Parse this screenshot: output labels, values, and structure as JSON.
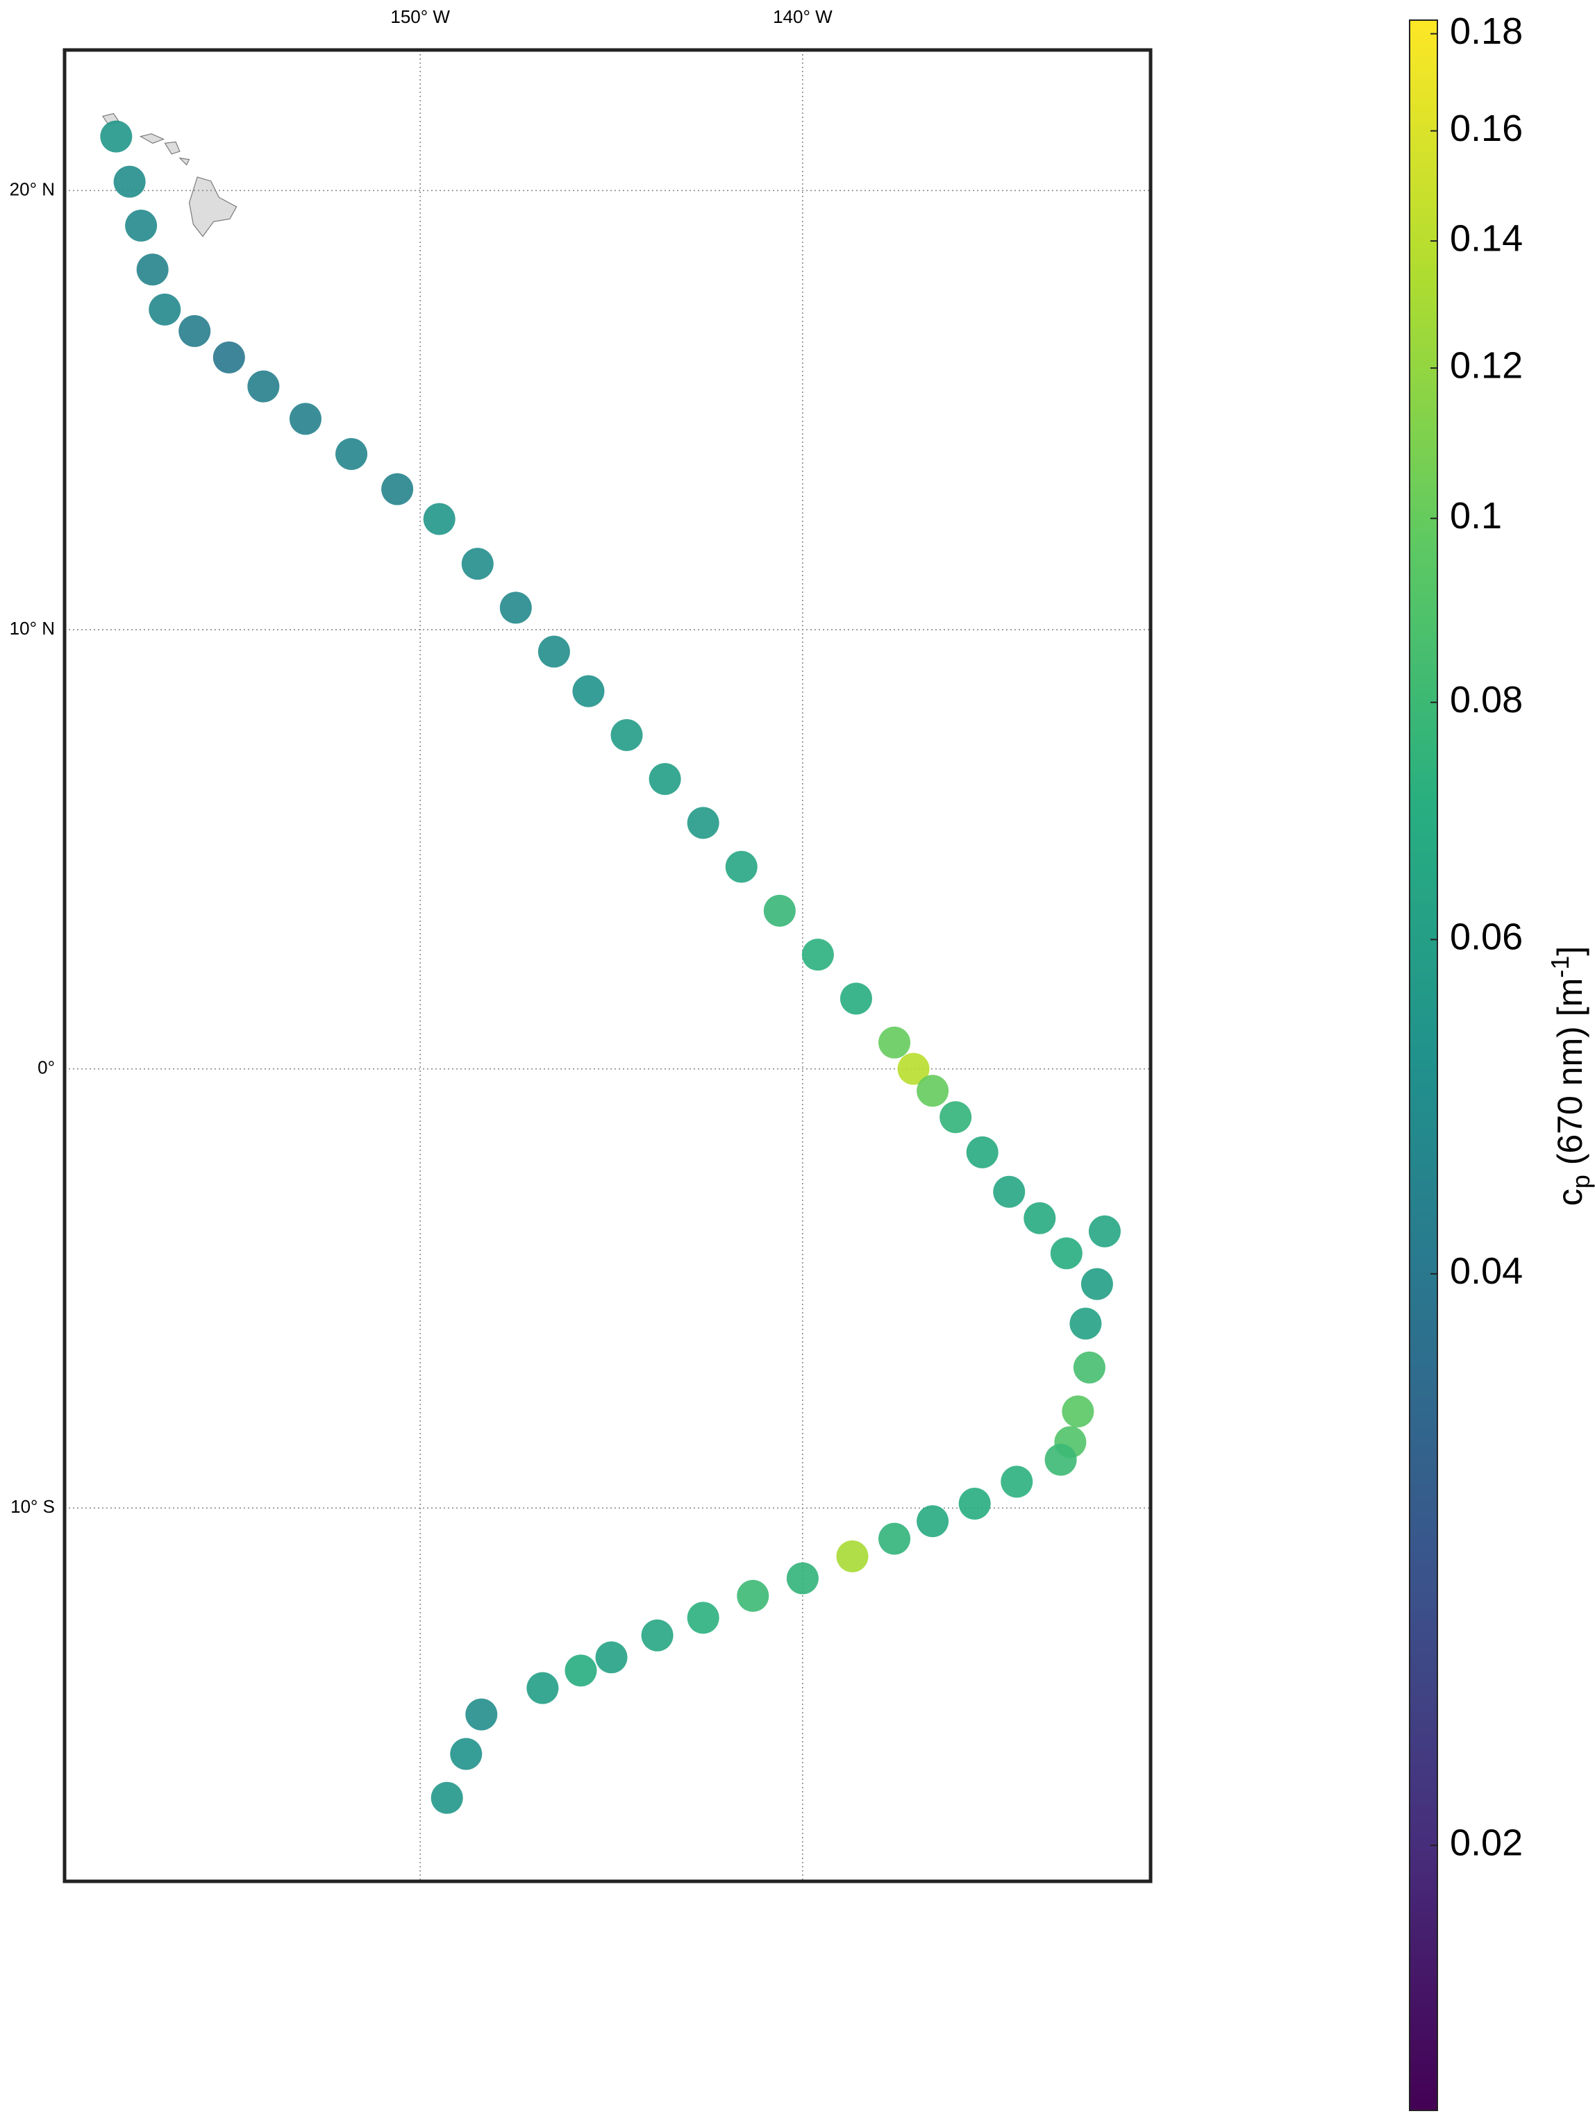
{
  "chart_data": {
    "type": "scatter",
    "x": [
      -157.95,
      -157.6,
      -157.3,
      -157.0,
      -156.68,
      -155.9,
      -155.0,
      -154.1,
      -153.0,
      -151.8,
      -150.6,
      -149.5,
      -148.5,
      -147.5,
      -146.5,
      -145.6,
      -144.6,
      -143.6,
      -142.6,
      -141.6,
      -140.6,
      -139.6,
      -138.6,
      -137.6,
      -137.1,
      -136.6,
      -136.0,
      -135.3,
      -134.6,
      -133.8,
      -133.1,
      -132.1,
      -132.3,
      -132.6,
      -132.5,
      -132.8,
      -133.0,
      -133.25,
      -134.4,
      -135.5,
      -136.6,
      -137.6,
      -138.7,
      -140.0,
      -141.3,
      -142.6,
      -143.8,
      -145.0,
      -145.8,
      -146.8,
      -148.4,
      -148.8,
      -149.3
    ],
    "y": [
      21.23,
      20.2,
      19.2,
      18.2,
      17.29,
      16.8,
      16.2,
      15.54,
      14.8,
      14.0,
      13.2,
      12.52,
      11.5,
      10.5,
      9.5,
      8.6,
      7.6,
      6.6,
      5.6,
      4.6,
      3.6,
      2.6,
      1.6,
      0.6,
      0.0,
      -0.5,
      -1.1,
      -1.9,
      -2.8,
      -3.4,
      -4.2,
      -3.7,
      -4.9,
      -5.8,
      -6.8,
      -7.8,
      -8.5,
      -8.9,
      -9.4,
      -9.9,
      -10.3,
      -10.7,
      -11.1,
      -11.6,
      -12.0,
      -12.5,
      -12.9,
      -13.4,
      -13.7,
      -14.1,
      -14.7,
      -15.6,
      -16.6
    ],
    "values": [
      0.055,
      0.05,
      0.048,
      0.045,
      0.047,
      0.042,
      0.04,
      0.043,
      0.044,
      0.046,
      0.045,
      0.055,
      0.05,
      0.048,
      0.05,
      0.052,
      0.058,
      0.06,
      0.057,
      0.065,
      0.078,
      0.072,
      0.07,
      0.1,
      0.14,
      0.1,
      0.075,
      0.068,
      0.065,
      0.068,
      0.07,
      0.065,
      0.06,
      0.062,
      0.085,
      0.095,
      0.09,
      0.08,
      0.072,
      0.07,
      0.068,
      0.075,
      0.13,
      0.075,
      0.08,
      0.072,
      0.065,
      0.062,
      0.07,
      0.06,
      0.05,
      0.052,
      0.055
    ],
    "xlim": [
      -159.3,
      -130.9
    ],
    "ylim": [
      -18.5,
      23.2
    ],
    "xticks": [
      {
        "value": -150,
        "label": "150° W"
      },
      {
        "value": -140,
        "label": "140° W"
      }
    ],
    "yticks": [
      {
        "value": 20,
        "label": "20° N"
      },
      {
        "value": 10,
        "label": "10° N"
      },
      {
        "value": 0,
        "label": "0°"
      },
      {
        "value": -10,
        "label": "10° S"
      }
    ],
    "grid": true,
    "colormap": "viridis",
    "color_scale": "log",
    "clim": [
      0.0145,
      0.183
    ],
    "cticks": [
      0.02,
      0.04,
      0.06,
      0.08,
      0.1,
      0.12,
      0.14,
      0.16,
      0.18
    ],
    "colorbar_label": {
      "symbol": "c",
      "subscript": "p",
      "text": " (670 nm) [m",
      "superscript": "-1",
      "end": "]"
    }
  }
}
